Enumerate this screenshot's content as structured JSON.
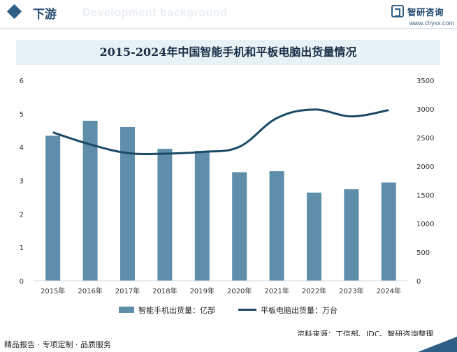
{
  "header": {
    "title": "下游",
    "watermark_text": "Development background"
  },
  "logo": {
    "name": "智研咨询",
    "url": "www.chyxx.com"
  },
  "colors": {
    "bar": "#5e8ea9",
    "line": "#1c4a66",
    "title_band": "#e6f2f5",
    "accent": "#2f5f86"
  },
  "chart_data": {
    "type": "bar",
    "title": "2015-2024年中国智能手机和平板电脑出货量情况",
    "categories": [
      "2015年",
      "2016年",
      "2017年",
      "2018年",
      "2019年",
      "2020年",
      "2021年",
      "2022年",
      "2023年",
      "2024年"
    ],
    "series": [
      {
        "name": "智能手机出货量：亿部",
        "type": "bar",
        "axis": "left",
        "values": [
          4.34,
          4.79,
          4.6,
          3.95,
          3.89,
          3.25,
          3.28,
          2.64,
          2.74,
          2.94
        ]
      },
      {
        "name": "平板电脑出货量：万台",
        "type": "line",
        "axis": "right",
        "values": [
          2590,
          2380,
          2230,
          2220,
          2250,
          2340,
          2840,
          2990,
          2870,
          2980
        ]
      }
    ],
    "y_left": {
      "min": 0,
      "max": 6,
      "ticks": [
        "0",
        "1",
        "2",
        "3",
        "4",
        "5",
        "6"
      ]
    },
    "y_right": {
      "min": 0,
      "max": 3500,
      "ticks": [
        "0",
        "500",
        "1000",
        "1500",
        "2000",
        "2500",
        "3000",
        "3500"
      ]
    },
    "grid": false,
    "legend_position": "bottom"
  },
  "source": "资料来源：工信部、IDC、智研咨询整理",
  "footer": {
    "text": "精品报告 · 专项定制 · 品质服务"
  }
}
